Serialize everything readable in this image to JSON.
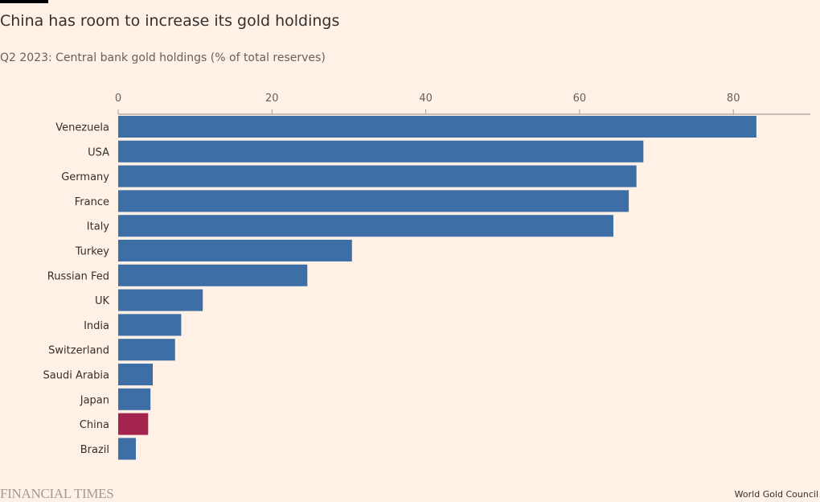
{
  "chart_data": {
    "type": "bar",
    "orientation": "horizontal",
    "title": "China has room to increase its gold holdings",
    "subtitle": "Q2 2023: Central bank gold holdings (% of total reserves)",
    "xlabel": "",
    "ylabel": "",
    "xlim": [
      0,
      90
    ],
    "xticks": [
      0,
      20,
      40,
      60,
      80
    ],
    "grid": false,
    "categories": [
      "Venezuela",
      "USA",
      "Germany",
      "France",
      "Italy",
      "Turkey",
      "Russian Fed",
      "UK",
      "India",
      "Switzerland",
      "Saudi Arabia",
      "Japan",
      "China",
      "Brazil"
    ],
    "values": [
      83.0,
      68.3,
      67.4,
      66.4,
      64.4,
      30.4,
      24.6,
      11.0,
      8.2,
      7.4,
      4.5,
      4.2,
      3.9,
      2.3
    ],
    "highlight": "China",
    "colors": {
      "default": "#3d6fa6",
      "highlight": "#a3244f"
    },
    "source": "World Gold Council"
  },
  "footer": {
    "brand": "FINANCIAL TIMES",
    "source": "World Gold Council"
  }
}
